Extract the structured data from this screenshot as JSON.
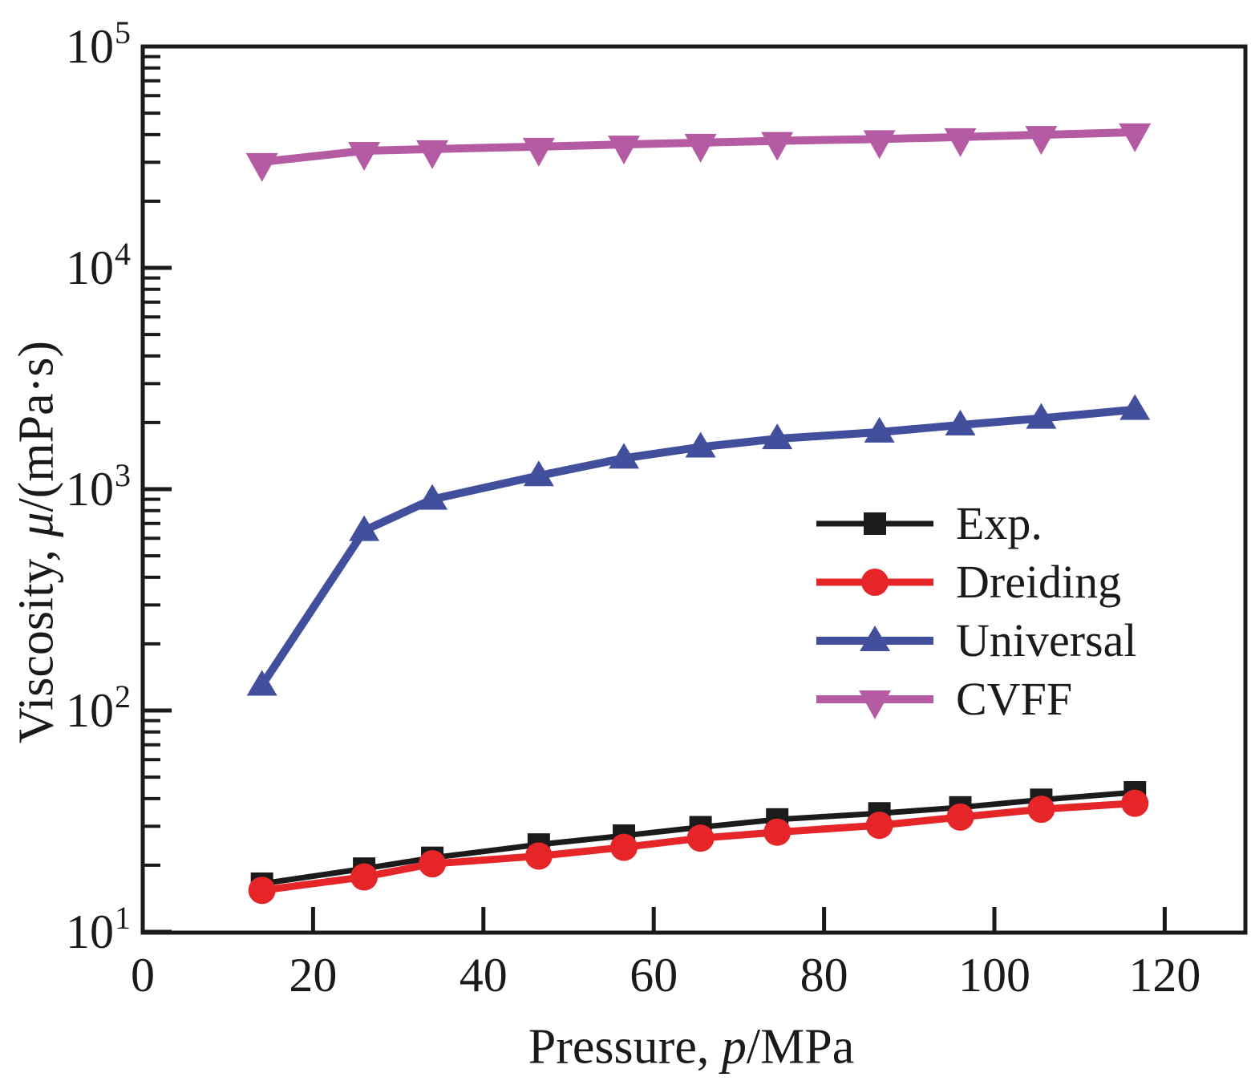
{
  "chart_data": {
    "type": "line",
    "x": [
      14,
      26,
      34,
      46.5,
      56.5,
      65.5,
      74.5,
      86.5,
      96,
      105.5,
      116.5
    ],
    "series": [
      {
        "name": "Exp.",
        "color": "#1b1b1b",
        "marker": "square",
        "values": [
          16.5,
          19.3,
          21.6,
          24.8,
          27.2,
          29.7,
          32.2,
          34.3,
          36.5,
          39.5,
          42.7
        ]
      },
      {
        "name": "Dreiding",
        "color": "#e62529",
        "marker": "circle",
        "values": [
          15.4,
          17.7,
          20.3,
          22.0,
          24.1,
          26.5,
          28.2,
          30.3,
          33.0,
          35.8,
          38.1
        ]
      },
      {
        "name": "Universal",
        "color": "#424f9c",
        "marker": "triangle-up",
        "values": [
          130,
          650,
          900,
          1150,
          1380,
          1550,
          1690,
          1810,
          1950,
          2090,
          2290
        ]
      },
      {
        "name": "CVFF",
        "color": "#b45ba3",
        "marker": "triangle-down",
        "values": [
          30100,
          33800,
          34400,
          35300,
          36100,
          36800,
          37500,
          38200,
          39000,
          39900,
          41000
        ]
      }
    ],
    "xlabel": {
      "prefix": "Pressure, ",
      "symbol": "p",
      "suffix": "/MPa"
    },
    "ylabel": {
      "prefix": "Viscosity, ",
      "symbol": "μ",
      "suffix": "/(mPa·s)"
    },
    "x_ticks": [
      0,
      20,
      40,
      60,
      80,
      100,
      120
    ],
    "y_tick_base": "10",
    "y_tick_exponents": [
      1,
      2,
      3,
      4,
      5
    ],
    "y_scale": "log",
    "xlim": [
      0,
      129.5
    ],
    "ylim_log10": [
      1,
      5
    ],
    "grid": false,
    "legend_position": "center-right",
    "axis_color": "#1a1a1a"
  }
}
